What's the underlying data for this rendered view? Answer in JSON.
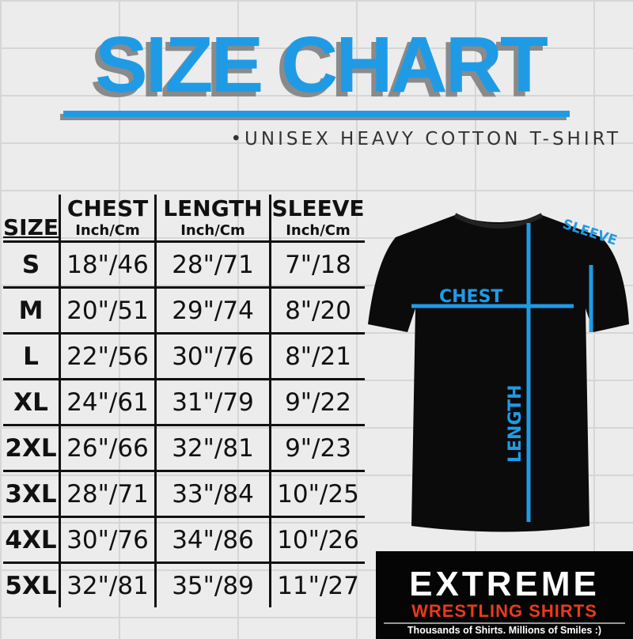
{
  "title": "SIZE CHART",
  "subtitle": "•UNISEX HEAVY COTTON T-SHIRT",
  "accent_color": "#1f9be6",
  "table": {
    "headers": [
      {
        "label": "SIZE",
        "unit": ""
      },
      {
        "label": "CHEST",
        "unit": "Inch/Cm"
      },
      {
        "label": "LENGTH",
        "unit": "Inch/Cm"
      },
      {
        "label": "SLEEVE",
        "unit": "Inch/Cm"
      }
    ],
    "rows": [
      [
        "S",
        "18\"/46",
        "28\"/71",
        "7\"/18"
      ],
      [
        "M",
        "20\"/51",
        "29\"/74",
        "8\"/20"
      ],
      [
        "L",
        "22\"/56",
        "30\"/76",
        "8\"/21"
      ],
      [
        "XL",
        "24\"/61",
        "31\"/79",
        "9\"/22"
      ],
      [
        "2XL",
        "26\"/66",
        "32\"/81",
        "9\"/23"
      ],
      [
        "3XL",
        "28\"/71",
        "33\"/84",
        "10\"/25"
      ],
      [
        "4XL",
        "30\"/76",
        "34\"/86",
        "10\"/26"
      ],
      [
        "5XL",
        "32\"/81",
        "35\"/89",
        "11\"/27"
      ]
    ]
  },
  "diagram": {
    "chest": "CHEST",
    "length": "LENGTH",
    "sleeve": "SLEEVE"
  },
  "logo": {
    "main": "EXTREME",
    "sub": "WRESTLING SHIRTS",
    "tagline": "Thousands of Shirts. Millions of Smiles :)"
  }
}
